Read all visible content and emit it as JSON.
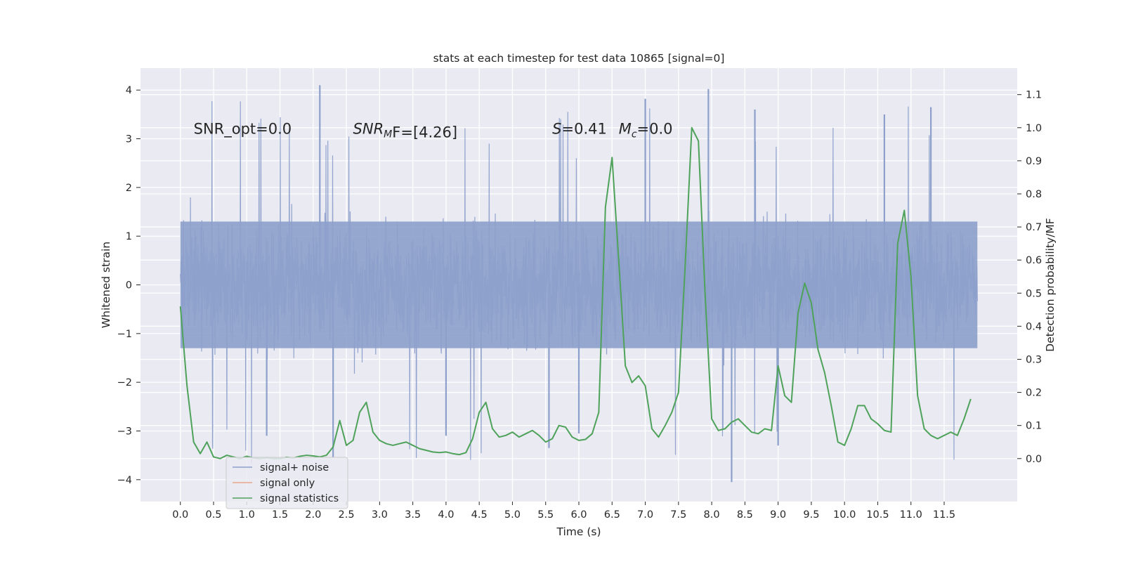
{
  "chart_data": {
    "type": "line",
    "title": "stats at each timestep for test data 10865 [signal=0]",
    "xlabel": "Time (s)",
    "ylabel": "Whitened strain",
    "y2label": "Detection probability/MF",
    "xlim": [
      -0.6,
      12.6
    ],
    "ylim": [
      -4.45,
      4.45
    ],
    "y2lim": [
      -0.13,
      1.18
    ],
    "x_ticks": [
      0.0,
      0.5,
      1.0,
      1.5,
      2.0,
      2.5,
      3.0,
      3.5,
      4.0,
      4.5,
      5.0,
      5.5,
      6.0,
      6.5,
      7.0,
      7.5,
      8.0,
      8.5,
      9.0,
      9.5,
      10.0,
      10.5,
      11.0,
      11.5
    ],
    "x_tick_labels": [
      "0.0",
      "0.5",
      "1.0",
      "1.5",
      "2.0",
      "2.5",
      "3.0",
      "3.5",
      "4.0",
      "4.5",
      "5.0",
      "5.5",
      "6.0",
      "6.5",
      "7.0",
      "7.5",
      "8.0",
      "8.5",
      "9.0",
      "9.5",
      "10.0",
      "10.5",
      "11.0",
      "11.5"
    ],
    "y_ticks": [
      4,
      3,
      2,
      1,
      0,
      -1,
      -2,
      -3,
      -4
    ],
    "y_tick_labels": [
      "4",
      "3",
      "2",
      "1",
      "0",
      "−1",
      "−2",
      "−3",
      "−4"
    ],
    "y2_ticks": [
      1.1,
      1.0,
      0.9,
      0.8,
      0.7,
      0.6,
      0.5,
      0.4,
      0.3,
      0.2,
      0.1,
      0.0
    ],
    "y2_tick_labels": [
      "1.1",
      "1.0",
      "0.9",
      "0.8",
      "0.7",
      "0.6",
      "0.5",
      "0.4",
      "0.3",
      "0.2",
      "0.1",
      "0.0"
    ],
    "grid": true,
    "legend_position": "lower-left",
    "legend": [
      {
        "label": "signal+ noise",
        "color": "#8da0cb"
      },
      {
        "label": "signal only",
        "color": "#e8a88a"
      },
      {
        "label": "signal statistics",
        "color": "#4ea25a"
      }
    ],
    "annotations": {
      "snr_opt": "SNR_opt=0.0",
      "snr_mf_main": "SNR",
      "snr_mf_sub": "M",
      "snr_mf_rest": "F=[4.26]",
      "s_main": "S",
      "s_rest": "=0.41",
      "mc_main": "M",
      "mc_sub": "c",
      "mc_rest": "=0.0"
    },
    "noise_series": {
      "name": "signal+ noise",
      "t_range": [
        0.0,
        12.0
      ],
      "band_min": -1.3,
      "band_max": 1.3,
      "typical_max": 1.9,
      "typical_min": -2.0,
      "peak_max": 4.1,
      "peak_min": -4.05,
      "color": "#8da0cb"
    },
    "signal_only_series": {
      "name": "signal only",
      "values": [],
      "color": "#e8a88a"
    },
    "stat_series": {
      "name": "signal statistics",
      "color": "#4ea25a",
      "x": [
        0.0,
        0.1,
        0.2,
        0.3,
        0.4,
        0.5,
        0.6,
        0.7,
        0.8,
        0.9,
        1.0,
        1.1,
        1.2,
        1.3,
        1.4,
        1.5,
        1.6,
        1.7,
        1.8,
        1.9,
        2.0,
        2.1,
        2.2,
        2.3,
        2.4,
        2.5,
        2.6,
        2.7,
        2.8,
        2.9,
        3.0,
        3.1,
        3.2,
        3.3,
        3.4,
        3.5,
        3.6,
        3.7,
        3.8,
        3.9,
        4.0,
        4.1,
        4.2,
        4.3,
        4.4,
        4.5,
        4.6,
        4.7,
        4.8,
        4.9,
        5.0,
        5.1,
        5.2,
        5.3,
        5.4,
        5.5,
        5.6,
        5.7,
        5.8,
        5.9,
        6.0,
        6.1,
        6.2,
        6.3,
        6.4,
        6.5,
        6.6,
        6.7,
        6.8,
        6.9,
        7.0,
        7.1,
        7.2,
        7.3,
        7.4,
        7.5,
        7.6,
        7.7,
        7.8,
        7.9,
        8.0,
        8.1,
        8.2,
        8.3,
        8.4,
        8.5,
        8.6,
        8.7,
        8.8,
        8.9,
        9.0,
        9.1,
        9.2,
        9.3,
        9.4,
        9.5,
        9.6,
        9.7,
        9.8,
        9.9,
        10.0,
        10.1,
        10.2,
        10.3,
        10.4,
        10.5,
        10.6,
        10.7,
        10.8,
        10.9,
        11.0,
        11.1,
        11.2,
        11.3,
        11.4,
        11.5,
        11.6,
        11.7,
        11.8,
        11.9
      ],
      "values": [
        0.46,
        0.22,
        0.05,
        0.015,
        0.05,
        0.005,
        0.0,
        0.01,
        0.005,
        0.0,
        0.007,
        0.002,
        0.0,
        0.003,
        0.0,
        0.0,
        0.004,
        0.002,
        0.007,
        0.01,
        0.008,
        0.005,
        0.01,
        0.035,
        0.115,
        0.04,
        0.055,
        0.14,
        0.17,
        0.08,
        0.055,
        0.045,
        0.04,
        0.045,
        0.05,
        0.04,
        0.03,
        0.025,
        0.02,
        0.018,
        0.02,
        0.015,
        0.012,
        0.018,
        0.06,
        0.14,
        0.17,
        0.09,
        0.065,
        0.07,
        0.08,
        0.065,
        0.075,
        0.085,
        0.07,
        0.05,
        0.06,
        0.1,
        0.095,
        0.065,
        0.055,
        0.058,
        0.075,
        0.14,
        0.76,
        0.91,
        0.6,
        0.28,
        0.23,
        0.25,
        0.22,
        0.09,
        0.065,
        0.1,
        0.14,
        0.2,
        0.58,
        1.0,
        0.96,
        0.5,
        0.12,
        0.085,
        0.09,
        0.11,
        0.12,
        0.1,
        0.08,
        0.075,
        0.09,
        0.085,
        0.28,
        0.19,
        0.17,
        0.44,
        0.53,
        0.47,
        0.33,
        0.26,
        0.16,
        0.05,
        0.04,
        0.09,
        0.16,
        0.16,
        0.12,
        0.105,
        0.085,
        0.08,
        0.65,
        0.75,
        0.55,
        0.19,
        0.09,
        0.07,
        0.06,
        0.07,
        0.08,
        0.07,
        0.12,
        0.18
      ]
    }
  }
}
